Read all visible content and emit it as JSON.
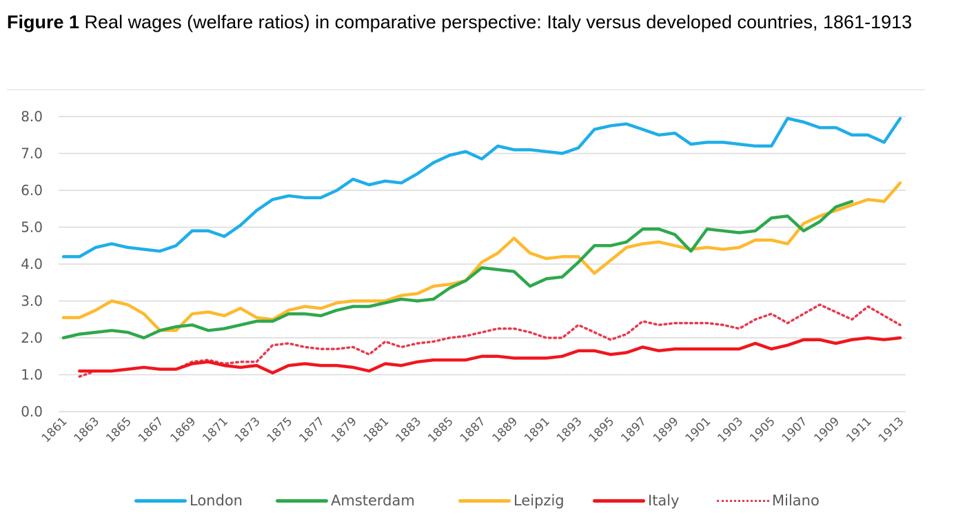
{
  "caption": {
    "figure_label": "Figure 1",
    "text": " Real wages (welfare ratios) in comparative perspective: Italy versus developed countries, 1861-1913"
  },
  "chart_data": {
    "type": "line",
    "title": "Real wages (welfare ratios) in comparative perspective: Italy versus developed countries, 1861-1913",
    "xlabel": "",
    "ylabel": "",
    "ylim": [
      0,
      8
    ],
    "yticks": [
      "0.0",
      "1.0",
      "2.0",
      "3.0",
      "4.0",
      "5.0",
      "6.0",
      "7.0",
      "8.0"
    ],
    "xticks": [
      "1861",
      "1863",
      "1865",
      "1867",
      "1869",
      "1871",
      "1873",
      "1875",
      "1877",
      "1879",
      "1881",
      "1883",
      "1885",
      "1887",
      "1889",
      "1891",
      "1893",
      "1895",
      "1897",
      "1899",
      "1901",
      "1903",
      "1905",
      "1907",
      "1909",
      "1911",
      "1913"
    ],
    "grid": true,
    "legend_position": "bottom",
    "x": [
      1861,
      1862,
      1863,
      1864,
      1865,
      1866,
      1867,
      1868,
      1869,
      1870,
      1871,
      1872,
      1873,
      1874,
      1875,
      1876,
      1877,
      1878,
      1879,
      1880,
      1881,
      1882,
      1883,
      1884,
      1885,
      1886,
      1887,
      1888,
      1889,
      1890,
      1891,
      1892,
      1893,
      1894,
      1895,
      1896,
      1897,
      1898,
      1899,
      1900,
      1901,
      1902,
      1903,
      1904,
      1905,
      1906,
      1907,
      1908,
      1909,
      1910,
      1911,
      1912,
      1913
    ],
    "series": [
      {
        "name": "London",
        "color": "#1FAEE8",
        "style": "solid",
        "values": [
          4.2,
          4.2,
          4.45,
          4.55,
          4.45,
          4.4,
          4.35,
          4.5,
          4.9,
          4.9,
          4.75,
          5.05,
          5.45,
          5.75,
          5.85,
          5.8,
          5.8,
          6.0,
          6.3,
          6.15,
          6.25,
          6.2,
          6.45,
          6.75,
          6.95,
          7.05,
          6.85,
          7.2,
          7.1,
          7.1,
          7.05,
          7.0,
          7.15,
          7.65,
          7.75,
          7.8,
          7.65,
          7.5,
          7.55,
          7.25,
          7.3,
          7.3,
          7.25,
          7.2,
          7.2,
          7.95,
          7.85,
          7.7,
          7.7,
          7.5,
          7.5,
          7.3,
          7.95
        ]
      },
      {
        "name": "Amsterdam",
        "color": "#2EA84C",
        "style": "solid",
        "values": [
          2.0,
          2.1,
          2.15,
          2.2,
          2.15,
          2.0,
          2.2,
          2.3,
          2.35,
          2.2,
          2.25,
          2.35,
          2.45,
          2.45,
          2.65,
          2.65,
          2.6,
          2.75,
          2.85,
          2.85,
          2.95,
          3.05,
          3.0,
          3.05,
          3.35,
          3.55,
          3.9,
          3.85,
          3.8,
          3.4,
          3.6,
          3.65,
          4.05,
          4.5,
          4.5,
          4.6,
          4.95,
          4.95,
          4.8,
          4.35,
          4.95,
          4.9,
          4.85,
          4.9,
          5.25,
          5.3,
          4.9,
          5.15,
          5.55,
          5.7,
          null,
          null,
          null
        ]
      },
      {
        "name": "Leipzig",
        "color": "#FDB92E",
        "style": "solid",
        "values": [
          2.55,
          2.55,
          2.75,
          3.0,
          2.9,
          2.65,
          2.2,
          2.2,
          2.65,
          2.7,
          2.6,
          2.8,
          2.55,
          2.5,
          2.75,
          2.85,
          2.8,
          2.95,
          3.0,
          3.0,
          3.0,
          3.15,
          3.2,
          3.4,
          3.45,
          3.55,
          4.05,
          4.3,
          4.7,
          4.3,
          4.15,
          4.2,
          4.2,
          3.75,
          4.1,
          4.45,
          4.55,
          4.6,
          4.5,
          4.4,
          4.45,
          4.4,
          4.45,
          4.65,
          4.65,
          4.55,
          5.1,
          5.3,
          5.45,
          5.6,
          5.75,
          5.7,
          6.2
        ]
      },
      {
        "name": "Italy",
        "color": "#F0161E",
        "style": "solid",
        "values": [
          null,
          1.1,
          1.1,
          1.1,
          1.15,
          1.2,
          1.15,
          1.15,
          1.3,
          1.35,
          1.25,
          1.2,
          1.25,
          1.05,
          1.25,
          1.3,
          1.25,
          1.25,
          1.2,
          1.1,
          1.3,
          1.25,
          1.35,
          1.4,
          1.4,
          1.4,
          1.5,
          1.5,
          1.45,
          1.45,
          1.45,
          1.5,
          1.65,
          1.65,
          1.55,
          1.6,
          1.75,
          1.65,
          1.7,
          1.7,
          1.7,
          1.7,
          1.7,
          1.85,
          1.7,
          1.8,
          1.95,
          1.95,
          1.85,
          1.95,
          2.0,
          1.95,
          2.0
        ]
      },
      {
        "name": "Milano",
        "color": "#E8394C",
        "style": "dotted",
        "values": [
          null,
          0.95,
          1.1,
          1.1,
          1.15,
          1.2,
          1.15,
          1.15,
          1.35,
          1.4,
          1.3,
          1.35,
          1.35,
          1.8,
          1.85,
          1.75,
          1.7,
          1.7,
          1.75,
          1.55,
          1.9,
          1.75,
          1.85,
          1.9,
          2.0,
          2.05,
          2.15,
          2.25,
          2.25,
          2.15,
          2.0,
          2.0,
          2.35,
          2.15,
          1.95,
          2.1,
          2.45,
          2.35,
          2.4,
          2.4,
          2.4,
          2.35,
          2.25,
          2.5,
          2.65,
          2.4,
          2.65,
          2.9,
          2.7,
          2.5,
          2.85,
          2.6,
          2.35
        ]
      }
    ]
  }
}
